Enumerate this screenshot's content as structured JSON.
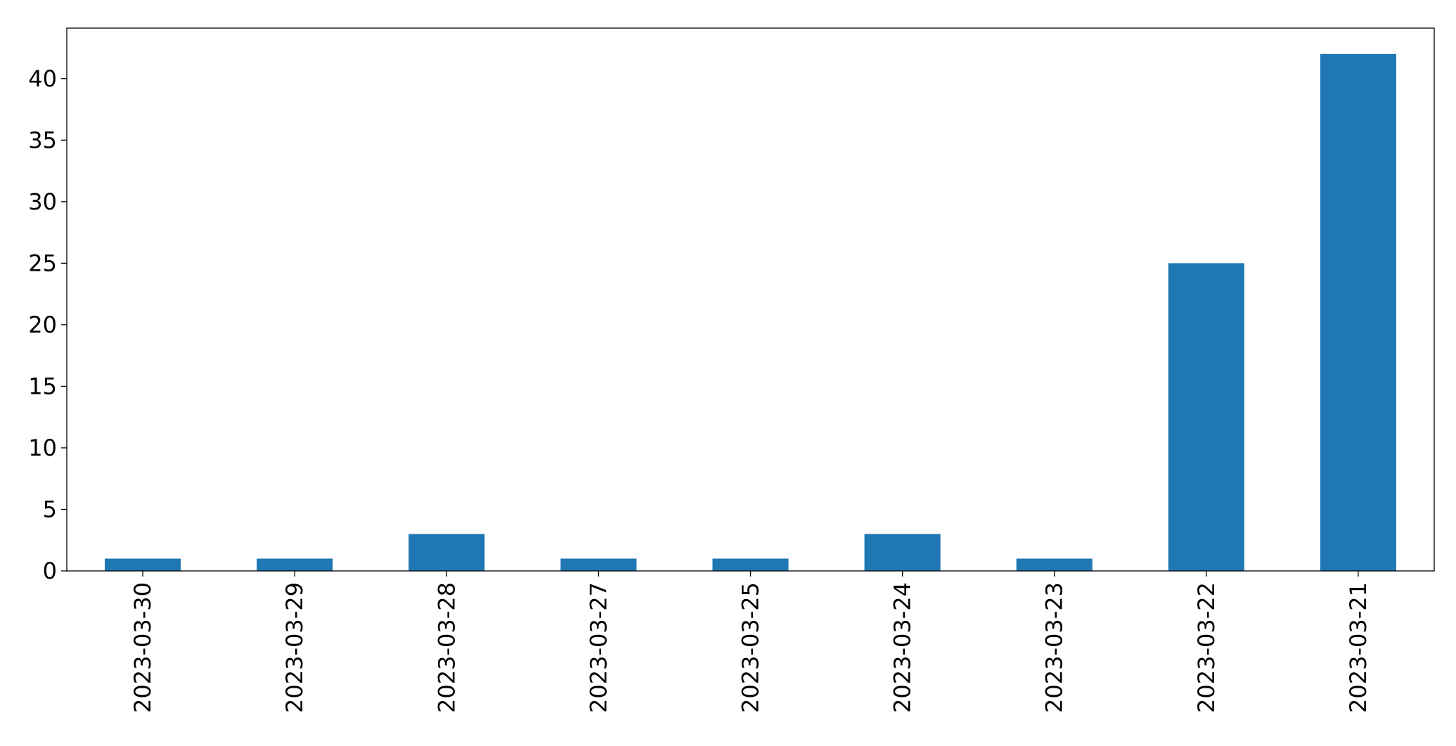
{
  "chart_data": {
    "type": "bar",
    "categories": [
      "2023-03-30",
      "2023-03-29",
      "2023-03-28",
      "2023-03-27",
      "2023-03-25",
      "2023-03-24",
      "2023-03-23",
      "2023-03-22",
      "2023-03-21"
    ],
    "values": [
      1,
      1,
      3,
      1,
      1,
      3,
      1,
      25,
      42
    ],
    "title": "",
    "xlabel": "",
    "ylabel": "",
    "ylim": [
      0,
      44.1
    ],
    "yticks": [
      "0",
      "5",
      "10",
      "15",
      "20",
      "25",
      "30",
      "35",
      "40"
    ],
    "grid": false,
    "legend": "none",
    "bar_color": "#1f77b4",
    "xtick_rotation": "vertical"
  }
}
